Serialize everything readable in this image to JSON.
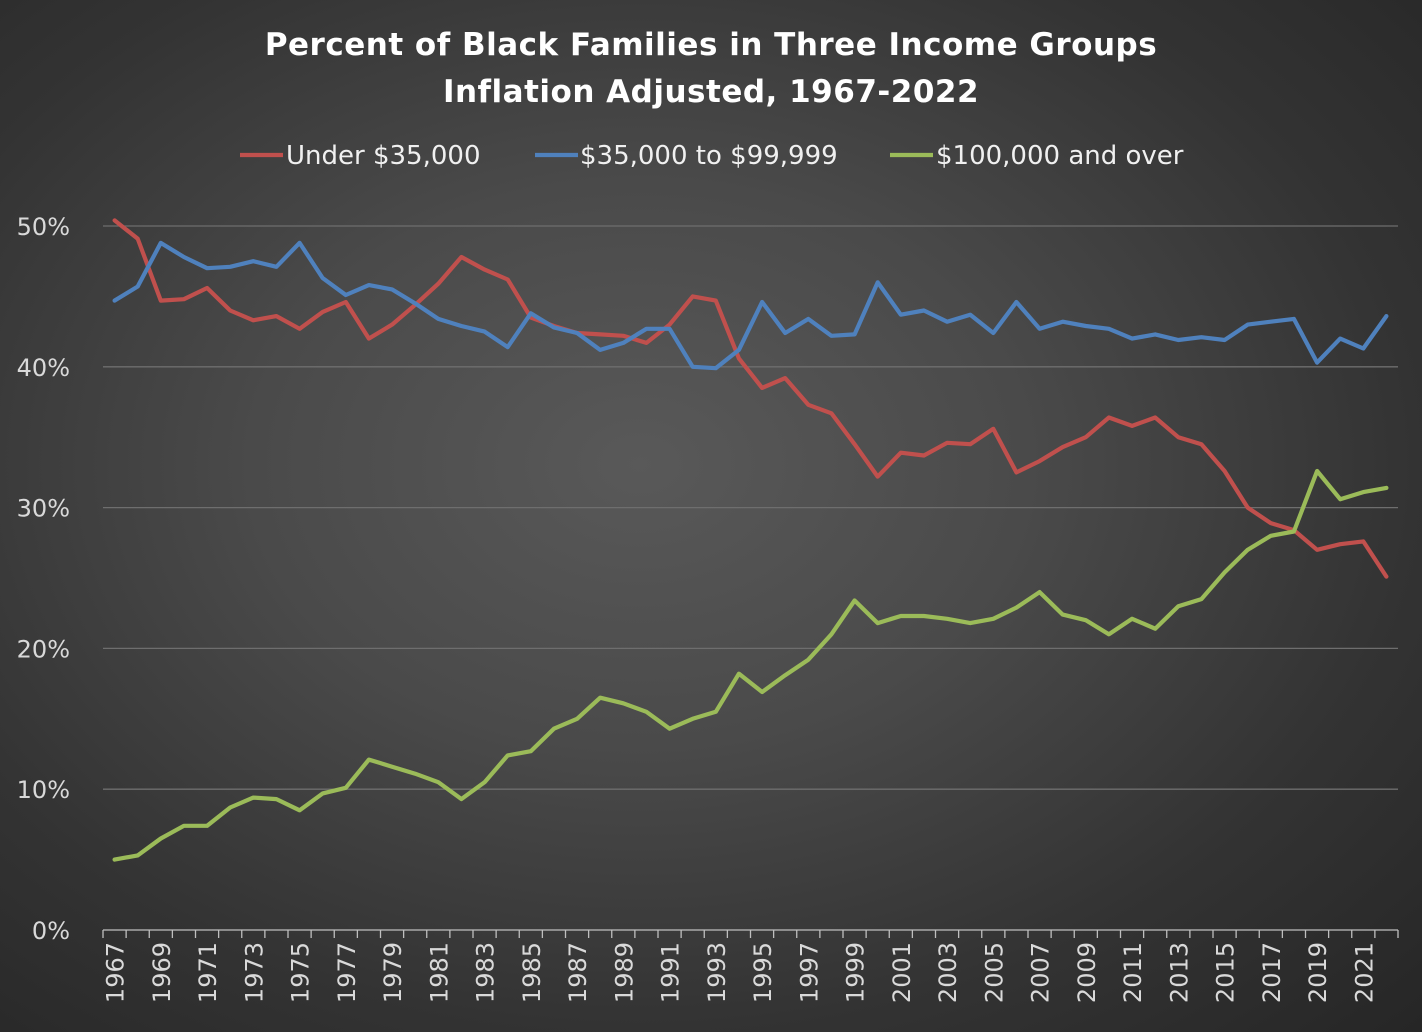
{
  "chart_data": {
    "type": "line",
    "title": "Percent of Black Families in Three Income Groups",
    "subtitle": "Inflation Adjusted, 1967-2022",
    "xlabel": "",
    "ylabel": "",
    "ylim": [
      0,
      50
    ],
    "yticks": [
      "0%",
      "10%",
      "20%",
      "30%",
      "40%",
      "50%"
    ],
    "x": [
      1967,
      1968,
      1969,
      1970,
      1971,
      1972,
      1973,
      1974,
      1975,
      1976,
      1977,
      1978,
      1979,
      1980,
      1981,
      1982,
      1983,
      1984,
      1985,
      1986,
      1987,
      1988,
      1989,
      1990,
      1991,
      1992,
      1993,
      1994,
      1995,
      1996,
      1997,
      1998,
      1999,
      2000,
      2001,
      2002,
      2003,
      2004,
      2005,
      2006,
      2007,
      2008,
      2009,
      2010,
      2011,
      2012,
      2013,
      2014,
      2015,
      2016,
      2017,
      2018,
      2019,
      2020,
      2021,
      2022
    ],
    "xtick_labels": [
      "1967",
      "1969",
      "1971",
      "1973",
      "1975",
      "1977",
      "1979",
      "1981",
      "1983",
      "1985",
      "1987",
      "1989",
      "1991",
      "1993",
      "1995",
      "1997",
      "1999",
      "2001",
      "2003",
      "2005",
      "2007",
      "2009",
      "2011",
      "2013",
      "2015",
      "2017",
      "2019",
      "2021"
    ],
    "legend_position": "top",
    "grid": true,
    "series": [
      {
        "name": "Under $35,000",
        "color": "#c0504d",
        "values": [
          50.4,
          49.1,
          44.7,
          44.8,
          45.6,
          44.0,
          43.3,
          43.6,
          42.7,
          43.9,
          44.6,
          42.0,
          43.0,
          44.4,
          45.9,
          47.8,
          46.9,
          46.2,
          43.5,
          42.9,
          42.4,
          42.3,
          42.2,
          41.7,
          43.0,
          45.0,
          44.7,
          40.6,
          38.5,
          39.2,
          37.3,
          36.7,
          34.5,
          32.2,
          33.9,
          33.7,
          34.6,
          34.5,
          35.6,
          32.5,
          33.3,
          34.3,
          35.0,
          36.4,
          35.8,
          36.4,
          35.0,
          34.5,
          32.6,
          30.0,
          28.9,
          28.4,
          27.0,
          27.4,
          27.6,
          25.1
        ]
      },
      {
        "name": "$35,000 to $99,999",
        "color": "#4f81bd",
        "values": [
          44.7,
          45.7,
          48.8,
          47.8,
          47.0,
          47.1,
          47.5,
          47.1,
          48.8,
          46.3,
          45.1,
          45.8,
          45.5,
          44.5,
          43.4,
          42.9,
          42.5,
          41.4,
          43.8,
          42.8,
          42.4,
          41.2,
          41.7,
          42.7,
          42.7,
          40.0,
          39.9,
          41.2,
          44.6,
          42.4,
          43.4,
          42.2,
          42.3,
          46.0,
          43.7,
          44.0,
          43.2,
          43.7,
          42.4,
          44.6,
          42.7,
          43.2,
          42.9,
          42.7,
          42.0,
          42.3,
          41.9,
          42.1,
          41.9,
          43.0,
          43.2,
          43.4,
          40.3,
          42.0,
          41.3,
          43.6
        ]
      },
      {
        "name": "$100,000 and over",
        "color": "#9bbb59",
        "values": [
          5.0,
          5.3,
          6.5,
          7.4,
          7.4,
          8.7,
          9.4,
          9.3,
          8.5,
          9.7,
          10.1,
          12.1,
          11.6,
          11.1,
          10.5,
          9.3,
          10.5,
          12.4,
          12.7,
          14.3,
          15.0,
          16.5,
          16.1,
          15.5,
          14.3,
          15.0,
          15.5,
          18.2,
          16.9,
          18.1,
          19.2,
          21.0,
          23.4,
          21.8,
          22.3,
          22.3,
          22.1,
          21.8,
          22.1,
          22.9,
          24.0,
          22.4,
          22.0,
          21.0,
          22.1,
          21.4,
          23.0,
          23.5,
          25.4,
          27.0,
          28.0,
          28.3,
          32.6,
          30.6,
          31.1,
          31.4
        ]
      }
    ]
  }
}
